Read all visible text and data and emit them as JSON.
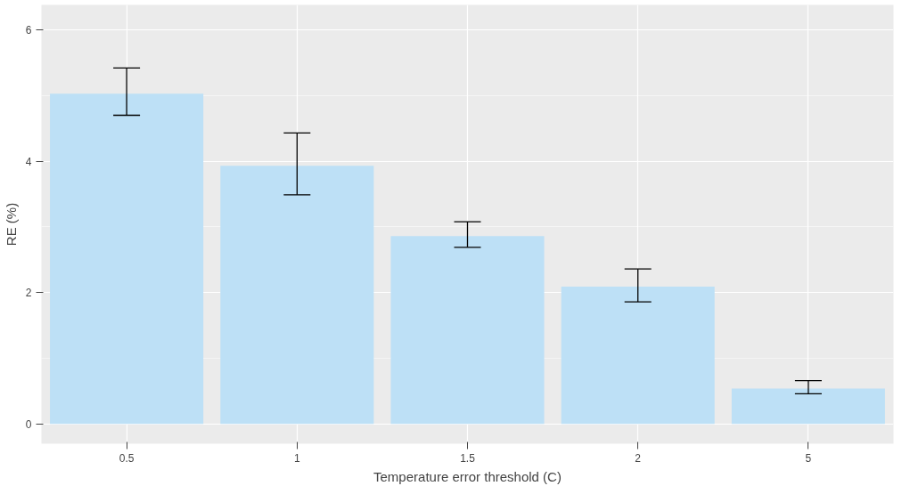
{
  "chart_data": {
    "type": "bar",
    "xlabel": "Temperature error threshold (C)",
    "ylabel": "RE (%)",
    "categories": [
      "0.5",
      "1",
      "1.5",
      "2",
      "5"
    ],
    "values": [
      5.03,
      3.93,
      2.86,
      2.09,
      0.54
    ],
    "errors": [
      [
        4.7,
        5.42
      ],
      [
        3.49,
        4.43
      ],
      [
        2.69,
        3.08
      ],
      [
        1.86,
        2.36
      ],
      [
        0.46,
        0.66
      ]
    ],
    "color": "#bde0f6",
    "ylim": [
      -0.3,
      6.38
    ],
    "yticks": [
      0,
      2,
      4,
      6
    ],
    "grid": true
  }
}
